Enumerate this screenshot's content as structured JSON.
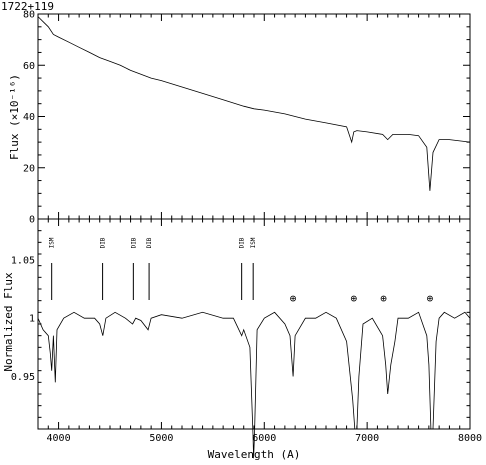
{
  "chart_data": [
    {
      "type": "line",
      "title": "1722+119",
      "xlabel": "",
      "ylabel": "Flux (×10⁻¹⁶)",
      "xlim": [
        3800,
        8000
      ],
      "ylim": [
        0,
        80
      ],
      "x_ticks": [
        4000,
        5000,
        6000,
        7000,
        8000
      ],
      "y_ticks": [
        0,
        20,
        40,
        60,
        80
      ],
      "y_tick_labels": [
        "0",
        "20",
        "40",
        "60",
        "80"
      ],
      "series": [
        {
          "x": [
            3800,
            3850,
            3900,
            3950,
            4000,
            4100,
            4200,
            4300,
            4400,
            4500,
            4600,
            4700,
            4800,
            4900,
            5000,
            5200,
            5400,
            5600,
            5800,
            5900,
            6000,
            6200,
            6300,
            6400,
            6600,
            6800,
            6850,
            6870,
            6900,
            7000,
            7150,
            7200,
            7250,
            7400,
            7500,
            7580,
            7610,
            7640,
            7700,
            7800,
            8000
          ],
          "y": [
            79,
            77,
            75,
            72,
            71,
            69,
            67,
            65,
            63,
            61.5,
            60,
            58,
            56.5,
            55,
            54,
            51.5,
            49,
            46.5,
            44,
            43,
            42.5,
            41,
            40,
            39,
            37.5,
            36,
            30,
            34,
            34.5,
            34,
            33,
            31,
            33,
            33,
            32.5,
            28,
            11,
            26,
            31,
            31,
            30
          ]
        }
      ]
    },
    {
      "type": "line",
      "title": "",
      "xlabel": "Wavelength (A)",
      "ylabel": "Normalized Flux",
      "xlim": [
        3800,
        8000
      ],
      "ylim": [
        0.905,
        1.085
      ],
      "x_ticks": [
        4000,
        5000,
        6000,
        7000,
        8000
      ],
      "x_tick_labels": [
        "4000",
        "5000",
        "6000",
        "7000",
        "8000"
      ],
      "y_ticks": [
        0.95,
        1.0,
        1.05
      ],
      "y_tick_labels": [
        "0.95",
        "1",
        "1.05"
      ],
      "series": [
        {
          "x": [
            3800,
            3850,
            3900,
            3920,
            3933,
            3950,
            3968,
            3985,
            4050,
            4150,
            4250,
            4350,
            4400,
            4430,
            4460,
            4550,
            4650,
            4720,
            4750,
            4800,
            4870,
            4900,
            5000,
            5200,
            5400,
            5600,
            5700,
            5780,
            5800,
            5860,
            5890,
            5896,
            5905,
            5930,
            6000,
            6100,
            6200,
            6250,
            6280,
            6300,
            6400,
            6500,
            6600,
            6700,
            6800,
            6860,
            6880,
            6900,
            6920,
            6960,
            7050,
            7150,
            7180,
            7200,
            7230,
            7270,
            7300,
            7400,
            7500,
            7580,
            7600,
            7620,
            7640,
            7670,
            7700,
            7750,
            7850,
            7950,
            8000
          ],
          "y": [
            1.0,
            0.99,
            0.985,
            0.97,
            0.955,
            0.985,
            0.945,
            0.99,
            1.0,
            1.005,
            1.0,
            1.0,
            0.995,
            0.985,
            1.0,
            1.005,
            1.0,
            0.995,
            1.0,
            0.998,
            0.99,
            1.0,
            1.003,
            1.0,
            1.005,
            1.0,
            1.0,
            0.985,
            0.99,
            0.975,
            0.9,
            0.88,
            0.9,
            0.99,
            1.0,
            1.005,
            0.995,
            0.985,
            0.95,
            0.985,
            1.0,
            1.0,
            1.005,
            1.0,
            0.98,
            0.93,
            0.905,
            0.905,
            0.95,
            0.995,
            1.0,
            0.985,
            0.96,
            0.935,
            0.96,
            0.98,
            1.0,
            1.0,
            1.005,
            0.985,
            0.96,
            0.905,
            0.905,
            0.98,
            1.0,
            1.005,
            1.0,
            1.005,
            1.0
          ]
        }
      ],
      "line_markers": [
        {
          "x": 3933,
          "label": "ISM"
        },
        {
          "x": 4428,
          "label": "DIB"
        },
        {
          "x": 4727,
          "label": "DIB"
        },
        {
          "x": 4880,
          "label": "DIB"
        },
        {
          "x": 5780,
          "label": "DIB"
        },
        {
          "x": 5892,
          "label": "ISM"
        }
      ],
      "telluric_markers": [
        {
          "x": 6280,
          "label": "⊕"
        },
        {
          "x": 6870,
          "label": "⊕"
        },
        {
          "x": 7160,
          "label": "⊕"
        },
        {
          "x": 7610,
          "label": "⊕"
        }
      ]
    }
  ]
}
